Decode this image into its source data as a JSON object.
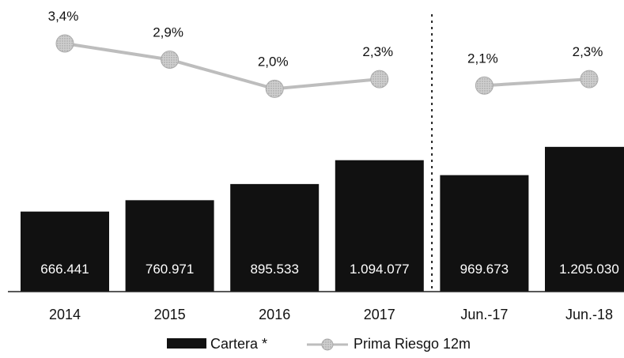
{
  "chart_data": {
    "type": "bar",
    "categories": [
      "2014",
      "2015",
      "2016",
      "2017",
      "Jun.-17",
      "Jun.-18"
    ],
    "series": [
      {
        "name": "Cartera *",
        "type": "bar",
        "values": [
          666441,
          760971,
          895533,
          1094077,
          969673,
          1205030
        ],
        "labels": [
          "666.441",
          "760.971",
          "895.533",
          "1.094.077",
          "969.673",
          "1.205.030"
        ],
        "color": "#111111"
      },
      {
        "name": "Prima Riesgo 12m",
        "type": "line",
        "values": [
          3.4,
          2.9,
          2.0,
          2.3,
          2.1,
          2.3
        ],
        "labels": [
          "3,4%",
          "2,9%",
          "2,0%",
          "2,3%",
          "2,1%",
          "2,3%"
        ],
        "color": "#bdbdbd",
        "segments": [
          [
            0,
            3
          ],
          [
            4,
            5
          ]
        ]
      }
    ],
    "separator_after_index": 3,
    "legend": [
      "Cartera *",
      "Prima Riesgo 12m"
    ],
    "legend_position": "bottom",
    "grid": false
  }
}
